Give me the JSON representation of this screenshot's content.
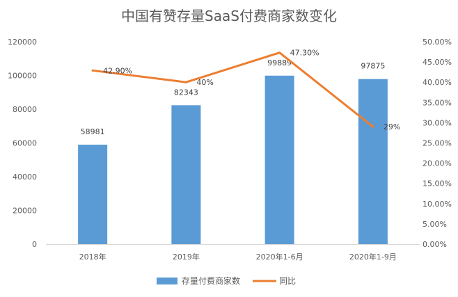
{
  "chart_data": {
    "type": "bar",
    "title": "中国有赞存量SaaS付费商家数变化",
    "categories": [
      "2018年",
      "2019年",
      "2020年1-6月",
      "2020年1-9月"
    ],
    "series": [
      {
        "name": "存量付费商家数",
        "chart": "bar",
        "axis": "left",
        "color": "#5B9BD5",
        "values": [
          58981,
          82343,
          99889,
          97875
        ],
        "labels": [
          "58981",
          "82343",
          "99889",
          "97875"
        ]
      },
      {
        "name": "同比",
        "chart": "line",
        "axis": "right",
        "color": "#ED7D31",
        "values": [
          0.429,
          0.4,
          0.473,
          0.29
        ],
        "labels": [
          "42.90%",
          "40%",
          "47.30%",
          "29%"
        ]
      }
    ],
    "y_left": {
      "range": [
        0,
        120000
      ],
      "ticks": [
        "0",
        "20000",
        "40000",
        "60000",
        "80000",
        "100000",
        "120000"
      ]
    },
    "y_right": {
      "range": [
        0,
        0.5
      ],
      "ticks": [
        "0.00%",
        "5.00%",
        "10.00%",
        "15.00%",
        "20.00%",
        "25.00%",
        "30.00%",
        "35.00%",
        "40.00%",
        "45.00%",
        "50.00%"
      ]
    },
    "grid": false,
    "legend": "bottom-center"
  }
}
